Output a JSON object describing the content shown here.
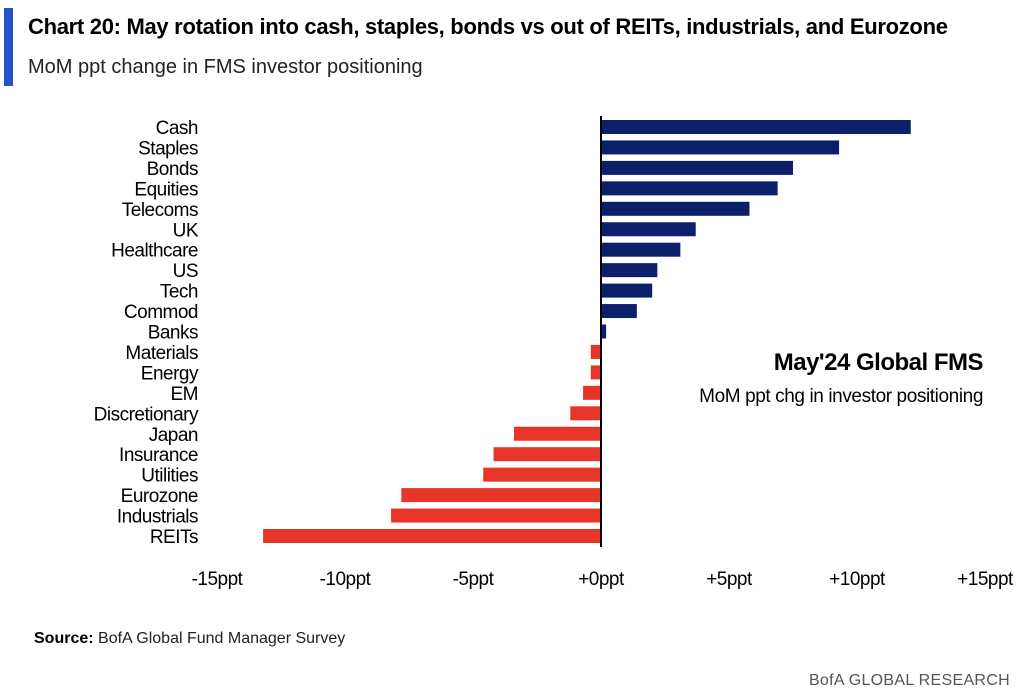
{
  "header": {
    "title": "Chart 20: May rotation into cash, staples, bonds vs out of REITs, industrials, and Eurozone",
    "subtitle": "MoM ppt change in FMS investor positioning"
  },
  "footer": {
    "source_label": "Source:",
    "source_text": " BofA Global Fund Manager Survey",
    "brand": "BofA GLOBAL RESEARCH"
  },
  "colors": {
    "positive": "#0b1f6b",
    "negative": "#e8352a",
    "accent": "#2453c4"
  },
  "chart_data": {
    "type": "bar",
    "orientation": "horizontal",
    "categories": [
      "Cash",
      "Staples",
      "Bonds",
      "Equities",
      "Telecoms",
      "UK",
      "Healthcare",
      "US",
      "Tech",
      "Commod",
      "Banks",
      "Materials",
      "Energy",
      "EM",
      "Discretionary",
      "Japan",
      "Insurance",
      "Utilities",
      "Eurozone",
      "Industrials",
      "REITs"
    ],
    "values": [
      12.1,
      9.3,
      7.5,
      6.9,
      5.8,
      3.7,
      3.1,
      2.2,
      2.0,
      1.4,
      0.2,
      -0.4,
      -0.4,
      -0.7,
      -1.2,
      -3.4,
      -4.2,
      -4.6,
      -7.8,
      -8.2,
      -13.2
    ],
    "xlim": [
      -15,
      15
    ],
    "xticks": [
      -15,
      -10,
      -5,
      0,
      5,
      10,
      15
    ],
    "xtick_labels": [
      "-15ppt",
      "-10ppt",
      "-5ppt",
      "+0ppt",
      "+5ppt",
      "+10ppt",
      "+15ppt"
    ],
    "annotation_title": "May'24 Global FMS",
    "annotation_text": "MoM ppt chg in investor positioning",
    "grid": false,
    "legend": "none"
  }
}
